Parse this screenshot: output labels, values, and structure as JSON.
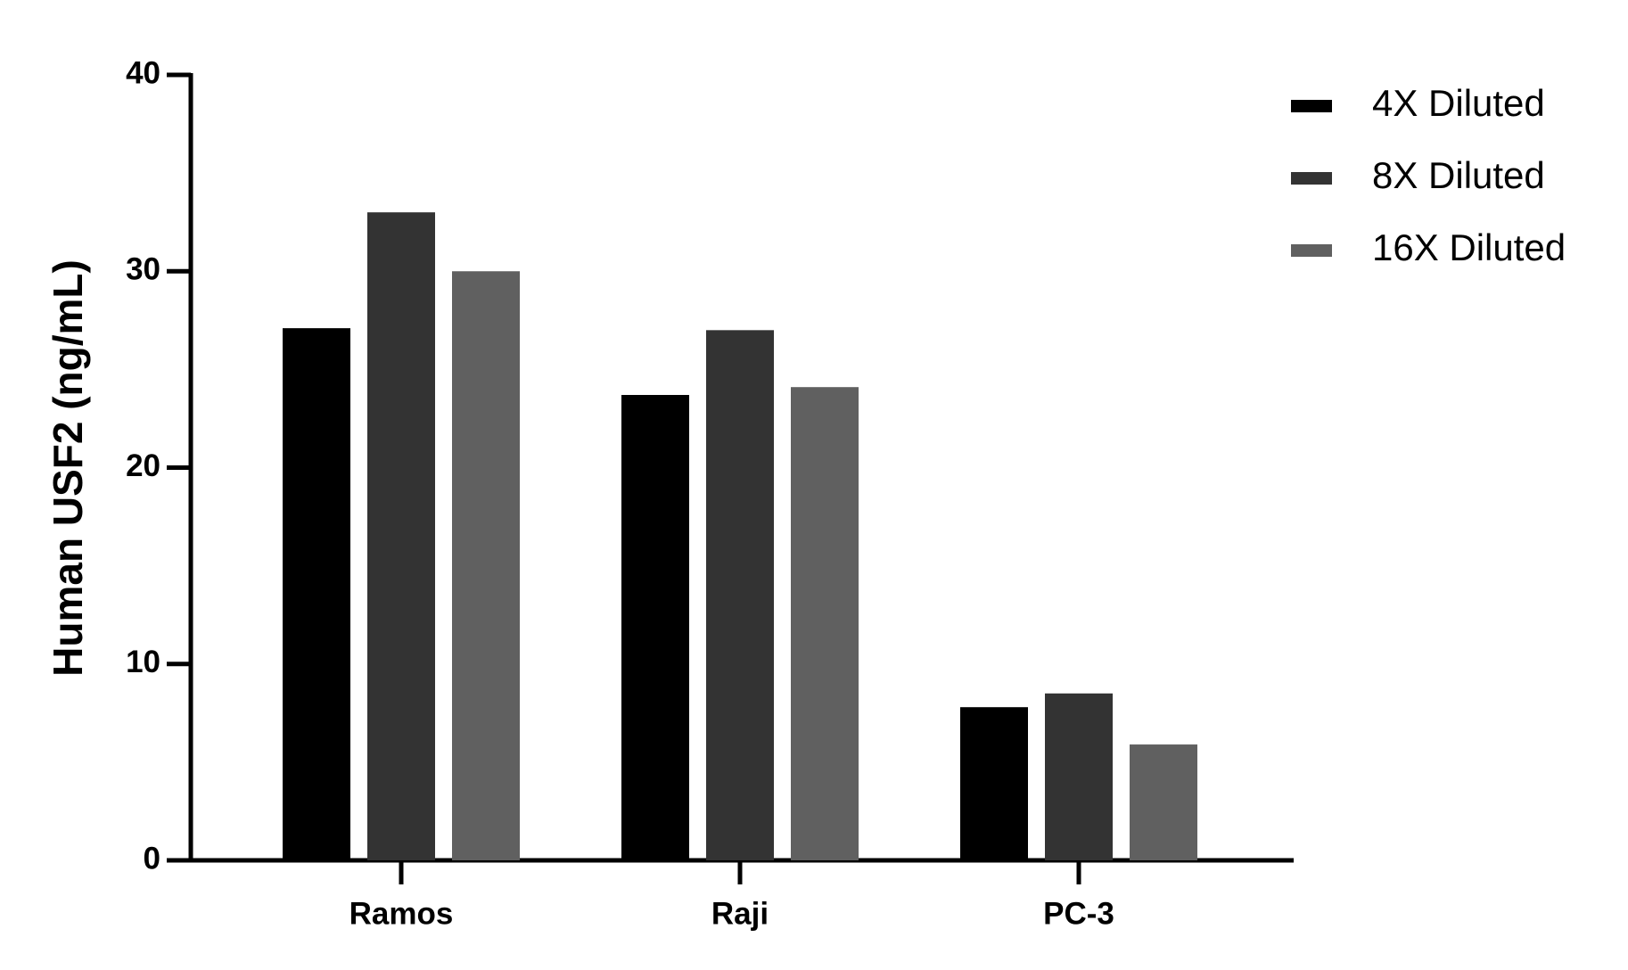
{
  "chart_data": {
    "type": "bar",
    "y_label": "Human USF2 (ng/mL)",
    "categories": [
      "Ramos",
      "Raji",
      "PC-3"
    ],
    "series": [
      {
        "name": "4X Diluted",
        "color": "#000000",
        "values": [
          27.1,
          23.7,
          7.8
        ]
      },
      {
        "name": "8X Diluted",
        "color": "#333333",
        "values": [
          33.0,
          27.0,
          8.5
        ]
      },
      {
        "name": "16X Diluted",
        "color": "#606060",
        "values": [
          30.0,
          24.1,
          5.9
        ]
      }
    ],
    "ylim": [
      0,
      40
    ],
    "yticks": [
      0,
      10,
      20,
      30,
      40
    ],
    "grid": false,
    "legend": "top-right"
  }
}
